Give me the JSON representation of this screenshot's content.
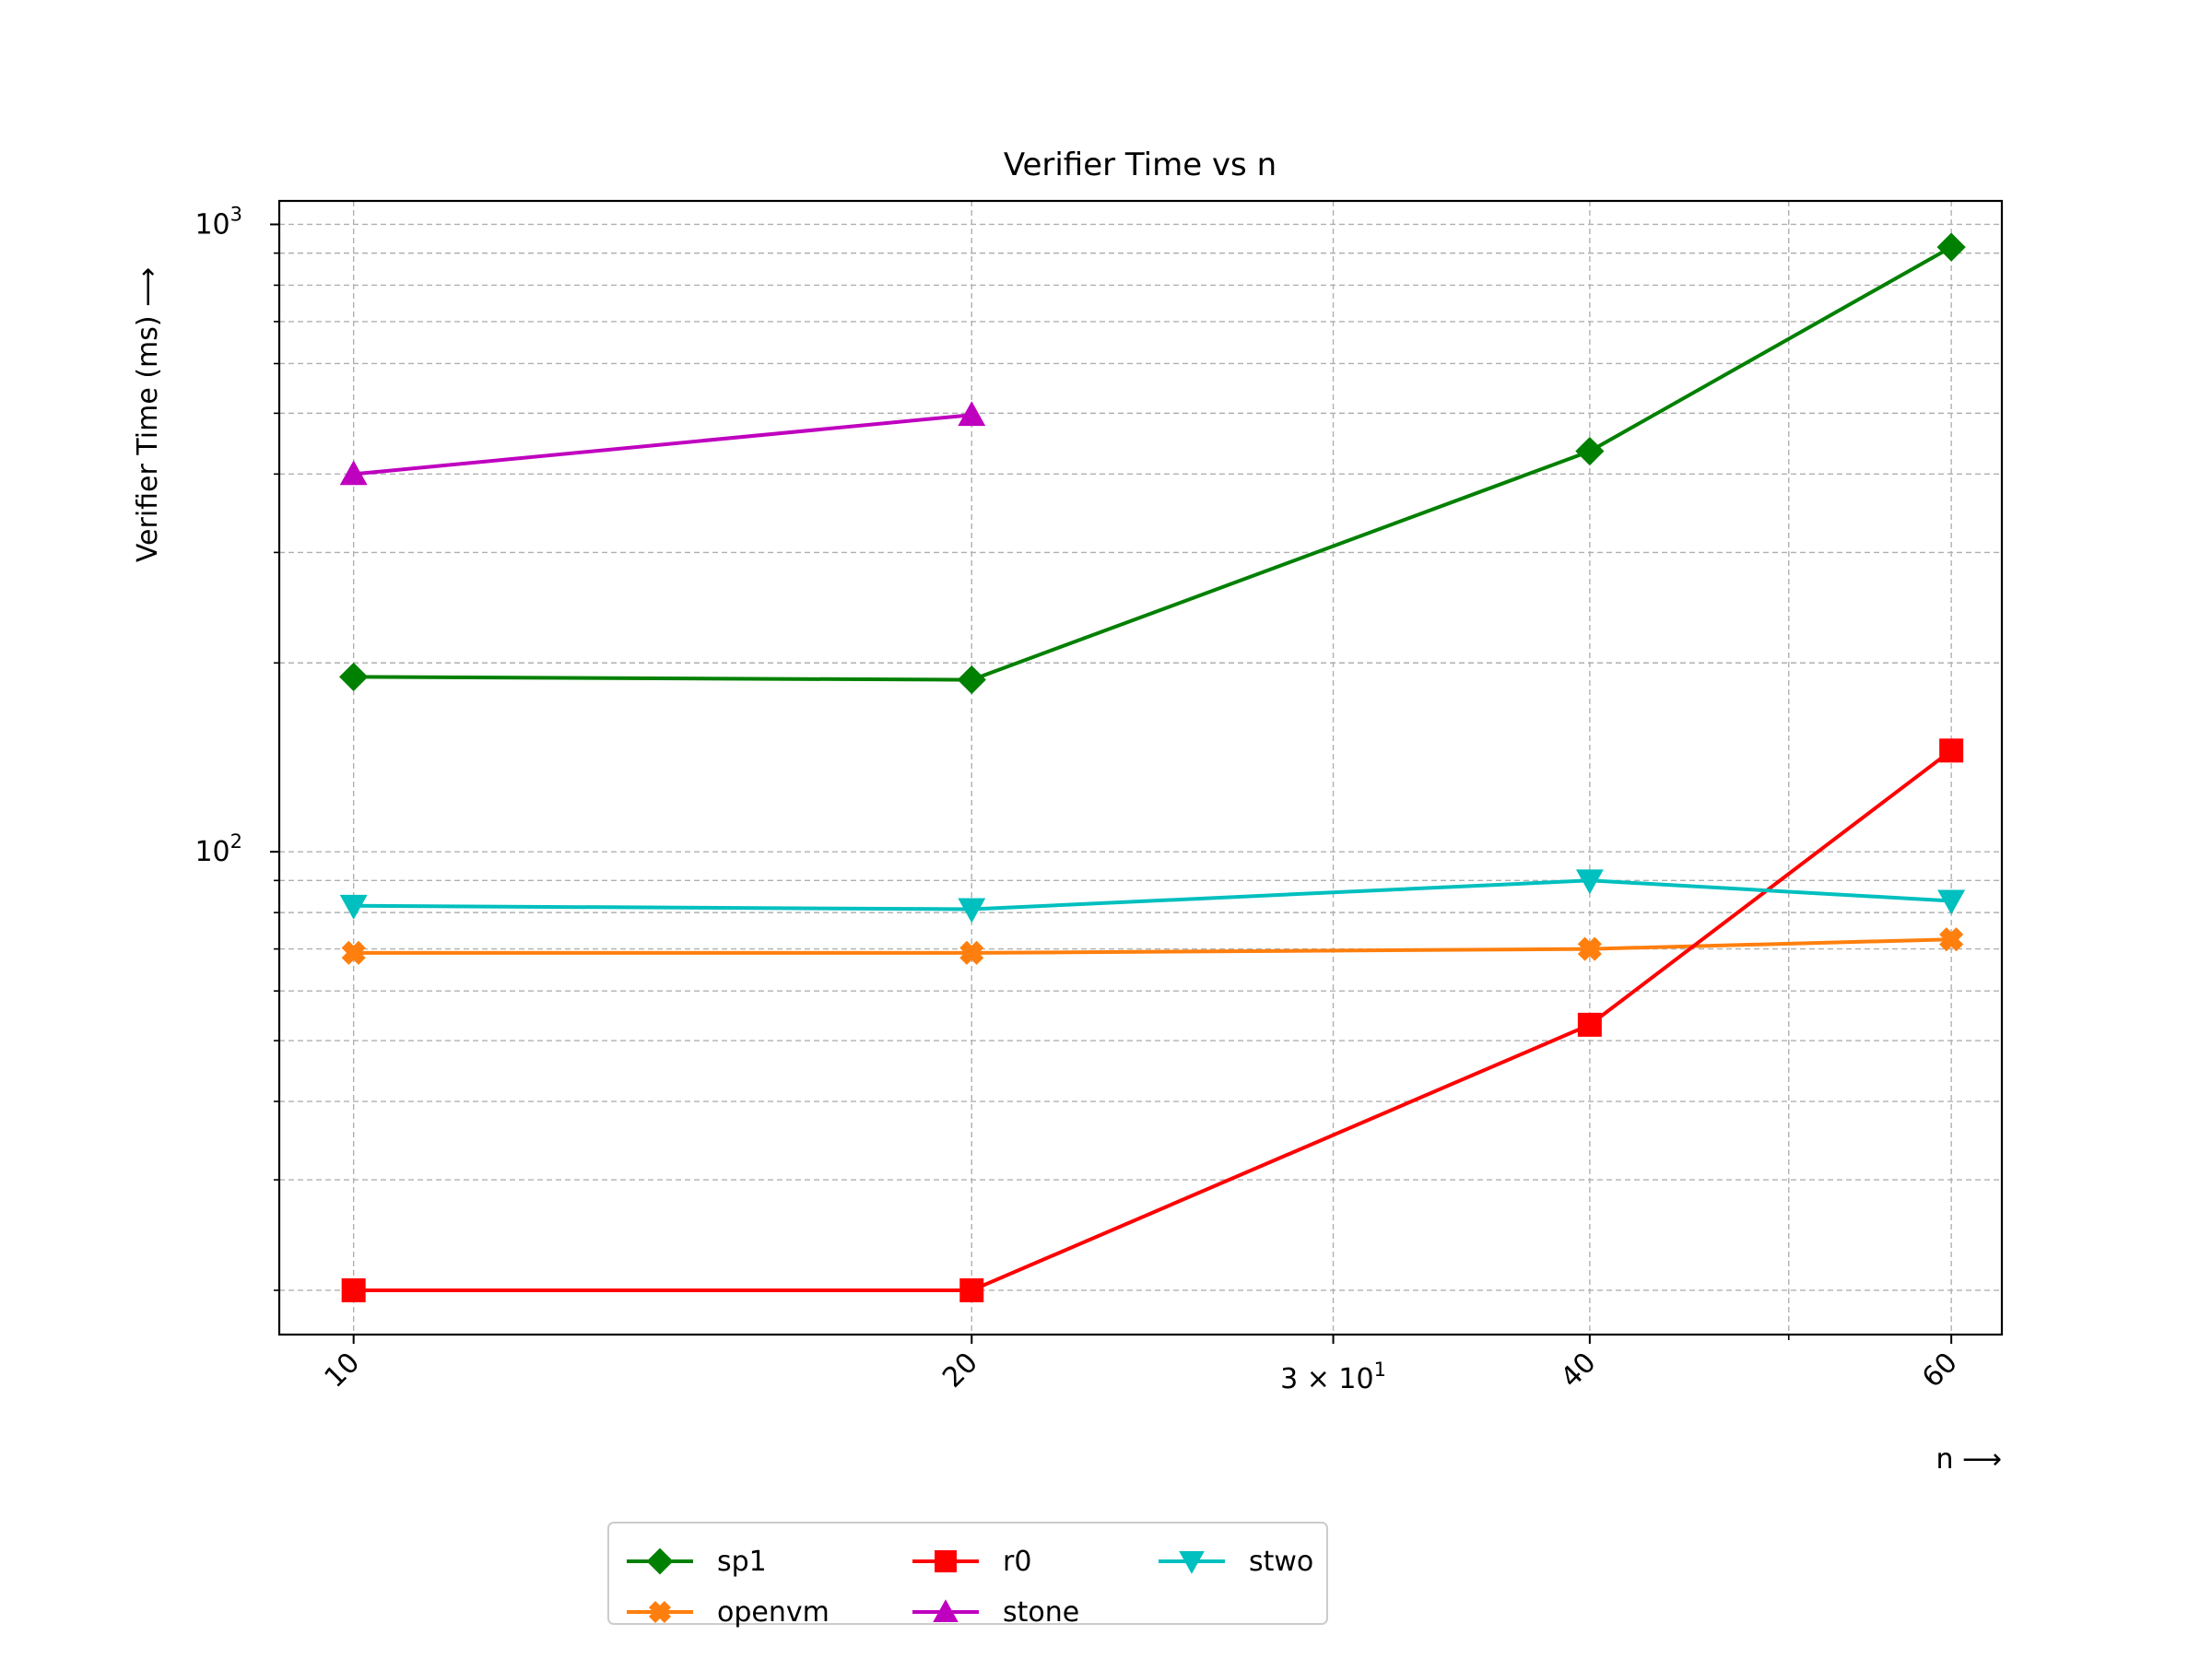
{
  "chart_data": {
    "type": "line",
    "title": "Verifier Time vs n",
    "xlabel": "n ⟶",
    "ylabel": "Verifier Time (ms) ⟶",
    "xscale": "log",
    "yscale": "log",
    "xlim": [
      9.2,
      63.5
    ],
    "ylim": [
      17,
      1090
    ],
    "grid": true,
    "legend_position": "below-center",
    "x": [
      10,
      20,
      40,
      60
    ],
    "x_tick_labels": [
      {
        "value": 10,
        "label": "10"
      },
      {
        "value": 20,
        "label": "20"
      },
      {
        "value": 30,
        "label": "3 × 10",
        "sup": "1"
      },
      {
        "value": 40,
        "label": "40"
      },
      {
        "value": 60,
        "label": "60"
      }
    ],
    "y_tick_labels": [
      {
        "value": 100,
        "label": "10",
        "sup": "2"
      },
      {
        "value": 1000,
        "label": "10",
        "sup": "3"
      }
    ],
    "series": [
      {
        "name": "sp1",
        "color": "#008000",
        "marker": "diamond",
        "points": [
          [
            10,
            190
          ],
          [
            20,
            188
          ],
          [
            40,
            435
          ],
          [
            60,
            920
          ]
        ]
      },
      {
        "name": "openvm",
        "color": "#ff7f0e",
        "marker": "x-filled",
        "points": [
          [
            10,
            69
          ],
          [
            20,
            69
          ],
          [
            40,
            70
          ],
          [
            60,
            72.5
          ]
        ]
      },
      {
        "name": "r0",
        "color": "#ff0000",
        "marker": "square",
        "points": [
          [
            10,
            20
          ],
          [
            20,
            20
          ],
          [
            40,
            53
          ],
          [
            60,
            145
          ]
        ]
      },
      {
        "name": "stone",
        "color": "#bf00bf",
        "marker": "triangle-up",
        "points": [
          [
            10,
            400
          ],
          [
            20,
            497
          ]
        ]
      },
      {
        "name": "stwo",
        "color": "#00bfbf",
        "marker": "triangle-down",
        "points": [
          [
            10,
            82
          ],
          [
            20,
            81
          ],
          [
            40,
            90
          ],
          [
            60,
            83.5
          ]
        ]
      }
    ]
  }
}
